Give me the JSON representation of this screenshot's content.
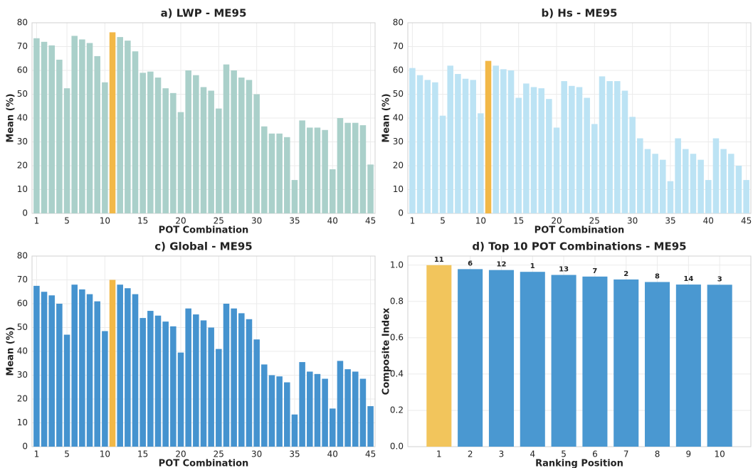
{
  "chart_data": [
    {
      "type": "bar",
      "title": "a) LWP - ME95",
      "xlabel": "POT Combination",
      "ylabel": "Mean (%)",
      "x": [
        1,
        2,
        3,
        4,
        5,
        6,
        7,
        8,
        9,
        10,
        11,
        12,
        13,
        14,
        15,
        16,
        17,
        18,
        19,
        20,
        21,
        22,
        23,
        24,
        25,
        26,
        27,
        28,
        29,
        30,
        31,
        32,
        33,
        34,
        35,
        36,
        37,
        38,
        39,
        40,
        41,
        42,
        43,
        44,
        45
      ],
      "values": [
        73.5,
        72,
        70.5,
        64.5,
        52.5,
        74.5,
        73,
        71.5,
        66,
        55,
        76,
        74,
        72.5,
        68,
        59,
        59.5,
        57,
        52.5,
        50.5,
        42.5,
        60,
        58,
        53,
        51.5,
        44,
        62.5,
        60,
        57,
        56,
        50,
        36.5,
        33.5,
        33.5,
        32,
        14,
        39,
        36,
        36,
        35,
        18.5,
        40,
        38,
        38,
        37,
        20.5
      ],
      "color": "#aad0ca",
      "highlight": {
        "index": 10,
        "color": "#f2b847"
      },
      "xlim": [
        0.4,
        45.6
      ],
      "xticks": [
        1,
        5,
        10,
        15,
        20,
        25,
        30,
        35,
        40,
        45
      ],
      "ylim": [
        0,
        80
      ],
      "yticks": [
        0,
        10,
        20,
        30,
        40,
        50,
        60,
        70,
        80
      ],
      "grid": true
    },
    {
      "type": "bar",
      "title": "b) Hs - ME95",
      "xlabel": "POT Combination",
      "ylabel": "Mean (%)",
      "x": [
        1,
        2,
        3,
        4,
        5,
        6,
        7,
        8,
        9,
        10,
        11,
        12,
        13,
        14,
        15,
        16,
        17,
        18,
        19,
        20,
        21,
        22,
        23,
        24,
        25,
        26,
        27,
        28,
        29,
        30,
        31,
        32,
        33,
        34,
        35,
        36,
        37,
        38,
        39,
        40,
        41,
        42,
        43,
        44,
        45
      ],
      "values": [
        61,
        58,
        56,
        55,
        41,
        62,
        58.5,
        56.5,
        56,
        42,
        64,
        62,
        60.5,
        60,
        48.5,
        54.5,
        53,
        52.5,
        48,
        36,
        55.5,
        53.5,
        53,
        48.5,
        37.5,
        57.5,
        55.5,
        55.5,
        51.5,
        40.5,
        31.5,
        27,
        25,
        22.5,
        13.5,
        31.5,
        27,
        25,
        22.5,
        14,
        31.5,
        27,
        25,
        20,
        14
      ],
      "color": "#bce3f4",
      "highlight": {
        "index": 10,
        "color": "#f2b847"
      },
      "xlim": [
        0.4,
        45.6
      ],
      "xticks": [
        1,
        5,
        10,
        15,
        20,
        25,
        30,
        35,
        40,
        45
      ],
      "ylim": [
        0,
        80
      ],
      "yticks": [
        0,
        10,
        20,
        30,
        40,
        50,
        60,
        70,
        80
      ],
      "grid": true
    },
    {
      "type": "bar",
      "title": "c) Global - ME95",
      "xlabel": "POT Combination",
      "ylabel": "Mean (%)",
      "x": [
        1,
        2,
        3,
        4,
        5,
        6,
        7,
        8,
        9,
        10,
        11,
        12,
        13,
        14,
        15,
        16,
        17,
        18,
        19,
        20,
        21,
        22,
        23,
        24,
        25,
        26,
        27,
        28,
        29,
        30,
        31,
        32,
        33,
        34,
        35,
        36,
        37,
        38,
        39,
        40,
        41,
        42,
        43,
        44,
        45
      ],
      "values": [
        67.5,
        65,
        63.5,
        60,
        47,
        68,
        66,
        64,
        61,
        48.5,
        70,
        68,
        66.5,
        64,
        54,
        57,
        55,
        52.5,
        50.5,
        39.5,
        58,
        55.5,
        53,
        50,
        41,
        60,
        58,
        56,
        53.5,
        45,
        34.5,
        30,
        29.5,
        27,
        13.5,
        35.5,
        31.5,
        30.5,
        28.5,
        16,
        36,
        32.5,
        31.5,
        28.5,
        17
      ],
      "color": "#4593cf",
      "highlight": {
        "index": 10,
        "color": "#f2b847"
      },
      "xlim": [
        0.4,
        45.6
      ],
      "xticks": [
        1,
        5,
        10,
        15,
        20,
        25,
        30,
        35,
        40,
        45
      ],
      "ylim": [
        0,
        80
      ],
      "yticks": [
        0,
        10,
        20,
        30,
        40,
        50,
        60,
        70,
        80
      ],
      "grid": true
    },
    {
      "type": "bar",
      "title": "d) Top 10 POT Combinations - ME95",
      "xlabel": "Ranking Position",
      "ylabel": "Composite Index",
      "x": [
        1,
        2,
        3,
        4,
        5,
        6,
        7,
        8,
        9,
        10
      ],
      "values": [
        1.0,
        0.978,
        0.973,
        0.963,
        0.946,
        0.937,
        0.921,
        0.907,
        0.893,
        0.892
      ],
      "bar_labels": [
        "11",
        "6",
        "12",
        "1",
        "13",
        "7",
        "2",
        "8",
        "14",
        "3"
      ],
      "color": "#4a98d1",
      "highlight": {
        "index": 0,
        "color": "#f2c55c"
      },
      "xlim": [
        0,
        11
      ],
      "xticks": [
        1,
        2,
        3,
        4,
        5,
        6,
        7,
        8,
        9,
        10
      ],
      "ylim": [
        0,
        1.05
      ],
      "yticks": [
        {
          "value": 0,
          "label": "0.0"
        },
        {
          "value": 0.2,
          "label": "0.2"
        },
        {
          "value": 0.4,
          "label": "0.4"
        },
        {
          "value": 0.6,
          "label": "0.6"
        },
        {
          "value": 0.8,
          "label": "0.8"
        },
        {
          "value": 1,
          "label": "1.0"
        }
      ],
      "grid": true
    }
  ]
}
